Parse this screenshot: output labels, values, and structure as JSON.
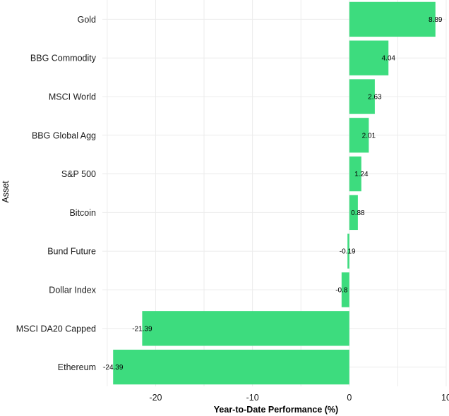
{
  "chart_data": {
    "type": "bar",
    "orientation": "horizontal",
    "categories": [
      "Gold",
      "BBG Commodity",
      "MSCI World",
      "BBG Global Agg",
      "S&P 500",
      "Bitcoin",
      "Bund Future",
      "Dollar Index",
      "MSCI DA20 Capped",
      "Ethereum"
    ],
    "values": [
      8.89,
      4.04,
      2.63,
      2.01,
      1.24,
      0.88,
      -0.19,
      -0.8,
      -21.39,
      -24.39
    ],
    "data_labels": [
      "8.89",
      "4.04",
      "2.63",
      "2.01",
      "1.24",
      "0.88",
      "-0.19",
      "-0.8",
      "-21.39",
      "-24.39"
    ],
    "xlabel": "Year-to-Date Performance (%)",
    "ylabel": "Asset",
    "xlim": [
      -25.5,
      10
    ],
    "xticks": [
      -20,
      -10,
      0,
      10
    ],
    "xtick_labels": [
      "-20",
      "-10",
      "0",
      "10"
    ],
    "grid": true,
    "bar_color": "#3ddc7e"
  }
}
